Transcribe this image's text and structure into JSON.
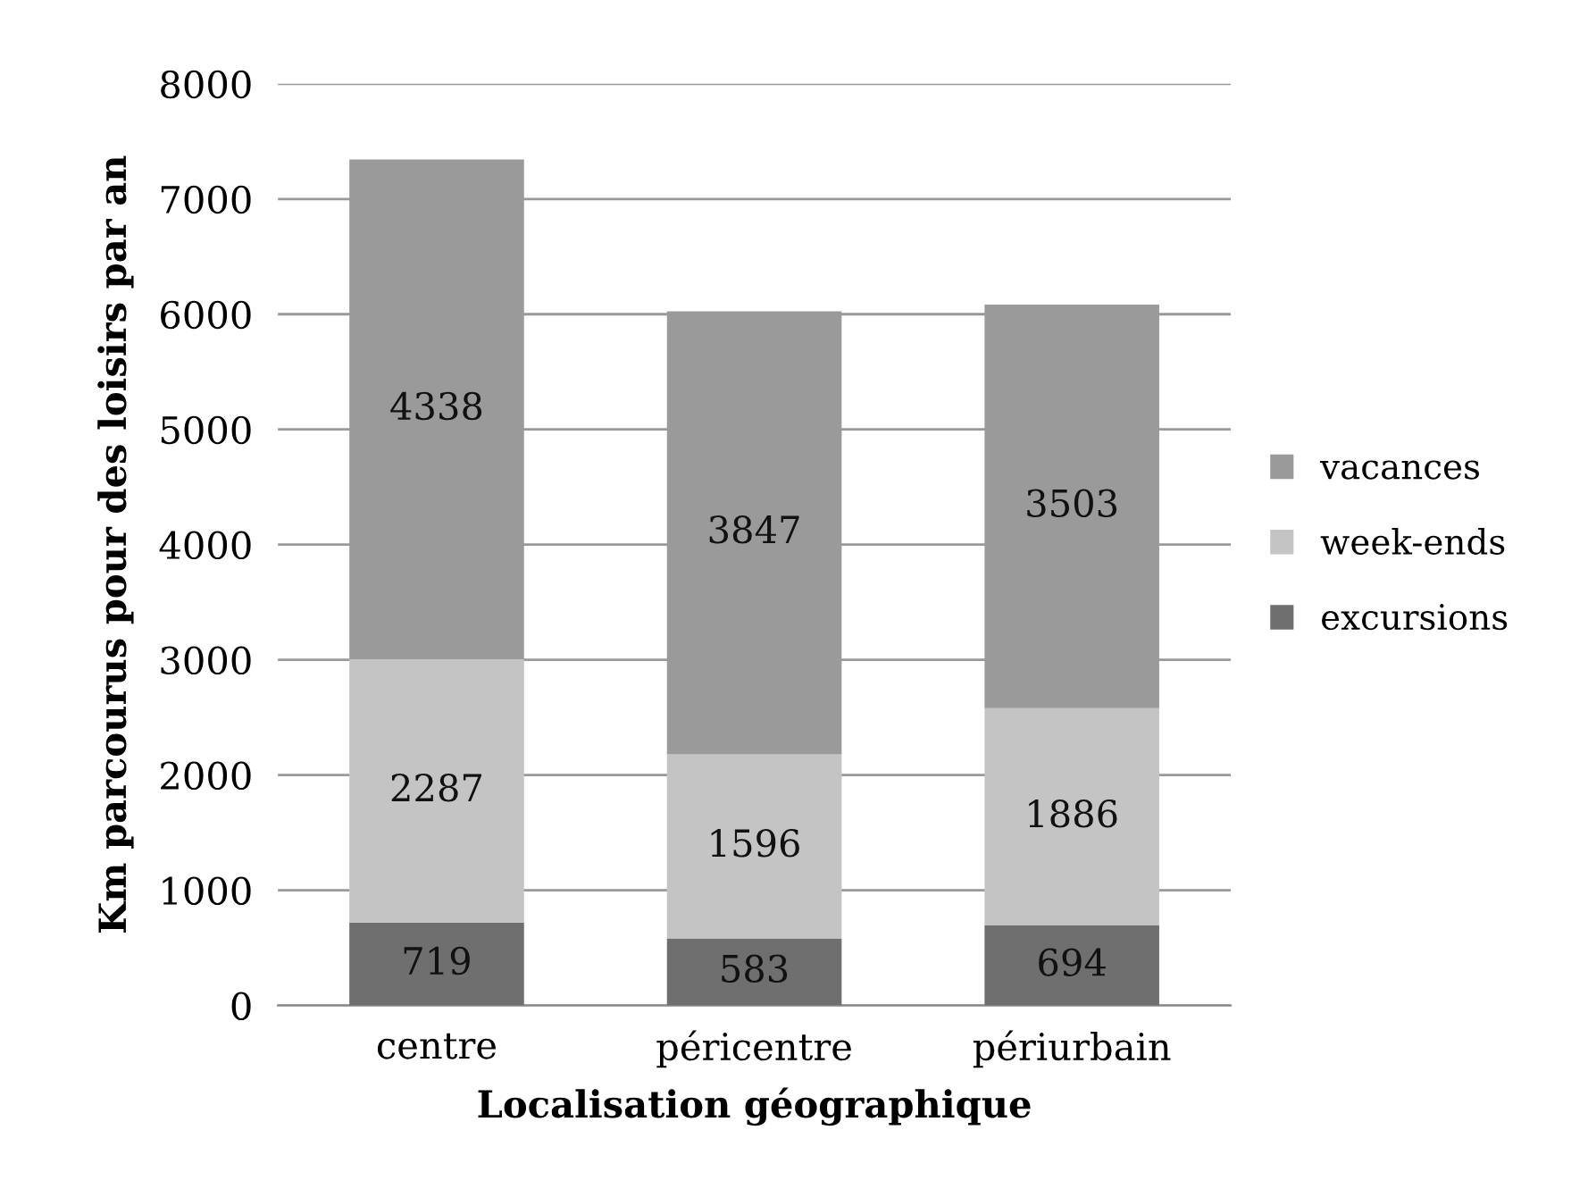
{
  "chart_data": {
    "type": "bar",
    "stacked": true,
    "xlabel": "Localisation géographique",
    "ylabel": "Km parcourus pour des loisirs par an",
    "categories": [
      "centre",
      "péricentre",
      "périurbain"
    ],
    "series": [
      {
        "name": "excursions",
        "color": "#6f6f6f",
        "values": [
          719,
          583,
          694
        ]
      },
      {
        "name": "week-ends",
        "color": "#c4c4c4",
        "values": [
          2287,
          1596,
          1886
        ]
      },
      {
        "name": "vacances",
        "color": "#9a9a9a",
        "values": [
          4338,
          3847,
          3503
        ]
      }
    ],
    "ylim": [
      0,
      8000
    ],
    "yticks": [
      0,
      1000,
      2000,
      3000,
      4000,
      5000,
      6000,
      7000,
      8000
    ],
    "grid": "y",
    "legend": "right",
    "data_labels": true
  }
}
